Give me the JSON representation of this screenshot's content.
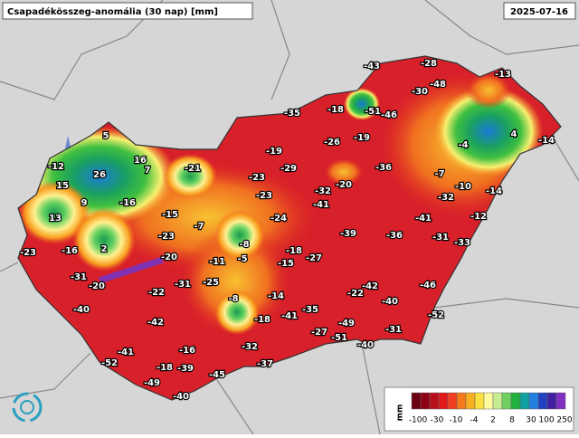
{
  "header": {
    "title": "Csapadékösszeg-anomália (30 nap) [mm]",
    "date": "2025-07-16"
  },
  "stations": [
    -43,
    -28,
    -13,
    -30,
    -48,
    -18,
    -51,
    -46,
    -35,
    5,
    -19,
    -26,
    4,
    -14,
    -4,
    -12,
    16,
    7,
    -21,
    -19,
    -29,
    -36,
    26,
    -23,
    -7,
    15,
    -20,
    -10,
    -32,
    -14,
    9,
    -16,
    -23,
    -32,
    -41,
    13,
    -15,
    -24,
    -12,
    -7,
    -41,
    -8,
    -23,
    -39,
    -36,
    -31,
    -33,
    -23,
    -16,
    2,
    -20,
    -18,
    -27,
    -11,
    -5,
    -15,
    -31,
    -20,
    -22,
    -31,
    -25,
    -42,
    -46,
    -22,
    -8,
    -14,
    -40,
    -40,
    -35,
    -18,
    -41,
    -52,
    -42,
    -49,
    -31,
    -27,
    -51,
    -16,
    -32,
    -40,
    -41,
    -52,
    -37,
    -18,
    -39,
    -45,
    -49,
    -40
  ],
  "legend": {
    "unit": "mm",
    "labels": [
      -100,
      -30,
      -10,
      -4,
      2,
      8,
      30,
      100,
      250
    ]
  }
}
